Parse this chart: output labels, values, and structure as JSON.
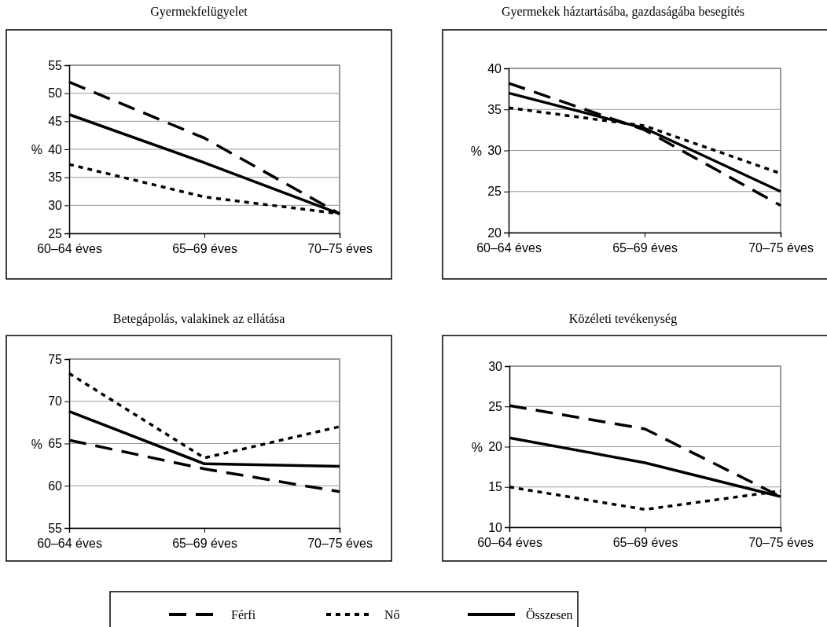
{
  "chart_data": [
    {
      "type": "line",
      "title": "Gyermekfelügyelet",
      "ylabel": "%",
      "categories": [
        "60–64 éves",
        "65–69 éves",
        "70–75 éves"
      ],
      "ylim": [
        25,
        55
      ],
      "yticks": [
        25,
        30,
        35,
        40,
        45,
        50,
        55
      ],
      "grid": "y",
      "legend": "bottom",
      "series": [
        {
          "name": "Férfi",
          "color": "#000000",
          "line_style": "dashed",
          "values": [
            52,
            42,
            28.5
          ]
        },
        {
          "name": "Nő",
          "color": "#000000",
          "line_style": "dotted",
          "values": [
            37.3,
            31.5,
            28.5
          ]
        },
        {
          "name": "Összesen",
          "color": "#000000",
          "line_style": "solid",
          "values": [
            46.2,
            37.6,
            28.5
          ]
        }
      ]
    },
    {
      "type": "line",
      "title": "Gyermekek háztartásába, gazdaságába besegítés",
      "ylabel": "%",
      "categories": [
        "60–64 éves",
        "65–69 éves",
        "70–75 éves"
      ],
      "ylim": [
        20,
        40
      ],
      "yticks": [
        20,
        25,
        30,
        35,
        40
      ],
      "grid": "y",
      "legend": "bottom",
      "series": [
        {
          "name": "Férfi",
          "color": "#000000",
          "line_style": "dashed",
          "values": [
            38.2,
            32.5,
            23.3
          ]
        },
        {
          "name": "Nő",
          "color": "#000000",
          "line_style": "dotted",
          "values": [
            35.2,
            33,
            27.2
          ]
        },
        {
          "name": "Összesen",
          "color": "#000000",
          "line_style": "solid",
          "values": [
            37,
            32.7,
            25
          ]
        }
      ]
    },
    {
      "type": "line",
      "title": "Betegápolás, valakinek az ellátása",
      "ylabel": "%",
      "categories": [
        "60–64 éves",
        "65–69 éves",
        "70–75 éves"
      ],
      "ylim": [
        55,
        75
      ],
      "yticks": [
        55,
        60,
        65,
        70,
        75
      ],
      "grid": "y",
      "legend": "bottom",
      "series": [
        {
          "name": "Férfi",
          "color": "#000000",
          "line_style": "dashed",
          "values": [
            65.4,
            62,
            59.3
          ]
        },
        {
          "name": "Nő",
          "color": "#000000",
          "line_style": "dotted",
          "values": [
            73.3,
            63.3,
            67
          ]
        },
        {
          "name": "Összesen",
          "color": "#000000",
          "line_style": "solid",
          "values": [
            68.8,
            62.6,
            62.3
          ]
        }
      ]
    },
    {
      "type": "line",
      "title": "Közéleti tevékenység",
      "ylabel": "%",
      "categories": [
        "60–64 éves",
        "65–69 éves",
        "70–75 éves"
      ],
      "ylim": [
        10,
        30
      ],
      "yticks": [
        10,
        15,
        20,
        25,
        30
      ],
      "grid": "y",
      "legend": "bottom",
      "series": [
        {
          "name": "Férfi",
          "color": "#000000",
          "line_style": "dashed",
          "values": [
            25.1,
            22.2,
            13.8
          ]
        },
        {
          "name": "Nő",
          "color": "#000000",
          "line_style": "dotted",
          "values": [
            15,
            12.2,
            14.5
          ]
        },
        {
          "name": "Összesen",
          "color": "#000000",
          "line_style": "solid",
          "values": [
            21.1,
            18,
            13.8
          ]
        }
      ]
    }
  ]
}
